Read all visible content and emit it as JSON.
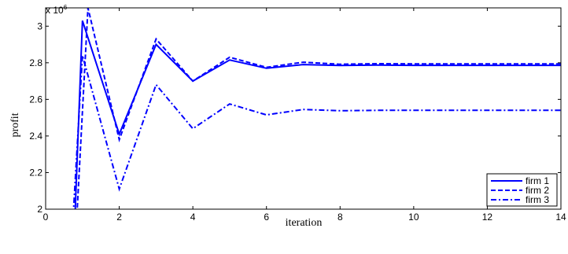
{
  "chart_data": {
    "type": "line",
    "xlabel": "iteration",
    "ylabel": "profit",
    "y_multiplier_label": "x 10",
    "y_multiplier_exponent": "6",
    "xlim": [
      0,
      14
    ],
    "ylim": [
      2000000,
      3100000
    ],
    "x_ticks": [
      0,
      2,
      4,
      6,
      8,
      10,
      12,
      14
    ],
    "y_ticks": [
      2000000,
      2200000,
      2400000,
      2600000,
      2800000,
      3000000
    ],
    "y_tick_labels": [
      "2",
      "2.2",
      "2.4",
      "2.6",
      "2.8",
      "3"
    ],
    "grid": false,
    "legend_position": "bottom-right",
    "line_color": "#0000ff",
    "series": [
      {
        "name": "firm 1",
        "dash": "solid",
        "x": [
          0.8,
          1,
          2,
          3,
          4,
          5,
          6,
          7,
          8,
          9,
          10,
          11,
          12,
          13,
          14
        ],
        "values": [
          1970000,
          3030000,
          2410000,
          2900000,
          2700000,
          2815000,
          2770000,
          2790000,
          2785000,
          2787000,
          2786000,
          2786000,
          2786000,
          2786000,
          2786000
        ]
      },
      {
        "name": "firm 2",
        "dash": "dashed",
        "x": [
          0.85,
          1.15,
          2,
          3,
          4,
          5,
          6,
          7,
          8,
          9,
          10,
          11,
          12,
          13,
          14
        ],
        "values": [
          1970000,
          3100000,
          2380000,
          2930000,
          2700000,
          2830000,
          2775000,
          2803000,
          2792000,
          2795000,
          2794000,
          2794000,
          2794000,
          2794000,
          2794000
        ]
      },
      {
        "name": "firm 3",
        "dash": "dashdot",
        "x": [
          0.75,
          1,
          2,
          3,
          4,
          5,
          6,
          7,
          8,
          9,
          10,
          11,
          12,
          13,
          14
        ],
        "values": [
          1970000,
          2840000,
          2110000,
          2680000,
          2440000,
          2575000,
          2515000,
          2545000,
          2538000,
          2540000,
          2540000,
          2540000,
          2540000,
          2540000,
          2540000
        ]
      }
    ]
  }
}
